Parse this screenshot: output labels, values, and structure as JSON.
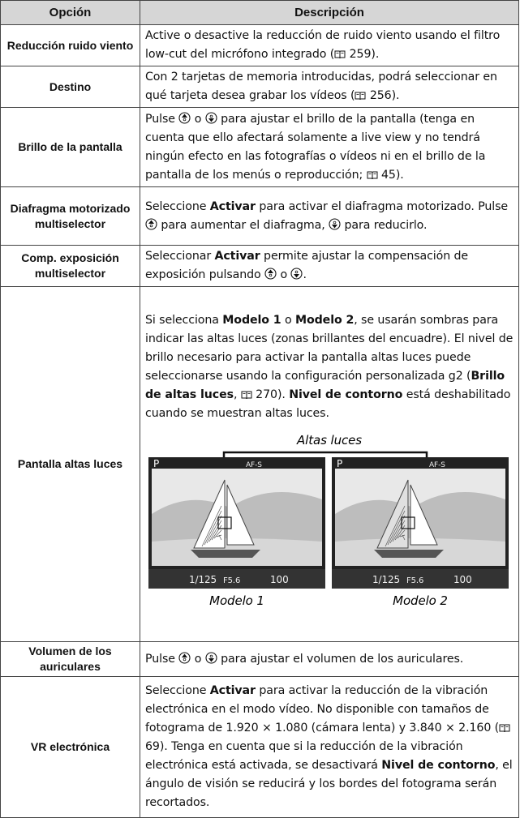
{
  "table": {
    "header": [
      "Opción",
      "Descripción"
    ],
    "rows": [
      {
        "option": "Reducción ruido viento",
        "description": [
          {
            "text": "Active o desactive la reducción de ruido viento usando el filtro low-cut del micrófono integrado ("
          },
          {
            "icon": "book"
          },
          {
            "text": " 259)."
          }
        ]
      },
      {
        "option": "Destino",
        "description": [
          {
            "text": "Con 2 tarjetas de memoria introducidas, podrá seleccionar en qué tarjeta desea grabar los vídeos ("
          },
          {
            "icon": "book"
          },
          {
            "text": " 256)."
          }
        ]
      },
      {
        "option": "Brillo de la pantalla",
        "description": [
          {
            "text": "Pulse "
          },
          {
            "icon": "up"
          },
          {
            "text": " o "
          },
          {
            "icon": "down"
          },
          {
            "text": " para ajustar el brillo de la pantalla (tenga en cuenta que ello afectará solamente a live view y no tendrá ningún efecto en las fotografías o vídeos ni en el brillo de la pantalla de los menús o reproducción; "
          },
          {
            "icon": "book"
          },
          {
            "text": " 45)."
          }
        ]
      },
      {
        "option": "Diafragma motorizado multiselector",
        "description": [
          {
            "text": "Seleccione "
          },
          {
            "text": "Activar",
            "bold": true
          },
          {
            "text": " para activar el diafragma motorizado. Pulse "
          },
          {
            "icon": "up"
          },
          {
            "text": " para aumentar el diafragma, "
          },
          {
            "icon": "down"
          },
          {
            "text": " para reducirlo."
          }
        ]
      },
      {
        "option": "Comp. exposición multiselector",
        "description": [
          {
            "text": "Seleccionar "
          },
          {
            "text": "Activar",
            "bold": true
          },
          {
            "text": " permite ajustar la compensación de exposición pulsando "
          },
          {
            "icon": "up"
          },
          {
            "text": " o "
          },
          {
            "icon": "down"
          },
          {
            "text": "."
          }
        ]
      },
      {
        "option": "Pantalla altas luces",
        "description": [
          {
            "text": "Si selecciona "
          },
          {
            "text": "Modelo 1",
            "bold": true
          },
          {
            "text": " o "
          },
          {
            "text": "Modelo 2",
            "bold": true
          },
          {
            "text": ", se usarán sombras para indicar las altas luces (zonas brillantes del encuadre). El nivel de brillo necesario para activar la pantalla altas luces puede seleccionarse usando la configuración personalizada g2 ("
          },
          {
            "text": "Brillo de altas luces",
            "bold": true
          },
          {
            "text": ", "
          },
          {
            "icon": "book"
          },
          {
            "text": " 270). "
          },
          {
            "text": "Nivel de contorno",
            "bold": true
          },
          {
            "text": " está deshabilitado cuando se muestran altas luces."
          }
        ],
        "figure": {
          "label": "Altas luces",
          "screen": {
            "mode": "P",
            "focus": "AF-S",
            "shutter": "1/125",
            "aperture": "F5.6",
            "iso": "100"
          },
          "panels": [
            {
              "caption": "Modelo 1"
            },
            {
              "caption": "Modelo 2"
            }
          ]
        }
      },
      {
        "option": "Volumen de los auriculares",
        "description": [
          {
            "text": "Pulse "
          },
          {
            "icon": "up"
          },
          {
            "text": " o "
          },
          {
            "icon": "down"
          },
          {
            "text": " para ajustar el volumen de los auriculares."
          }
        ]
      },
      {
        "option": "VR electrónica",
        "description": [
          {
            "text": "Seleccione "
          },
          {
            "text": "Activar",
            "bold": true
          },
          {
            "text": " para activar la reducción de la vibración electrónica en el modo vídeo. No disponible con tamaños de fotograma de 1.920 × 1.080 (cámara lenta) y 3.840 × 2.160 ("
          },
          {
            "icon": "book"
          },
          {
            "text": " 69). Tenga en cuenta que si la reducción de la vibración electrónica está activada, se desactivará "
          },
          {
            "text": "Nivel de contorno",
            "bold": true
          },
          {
            "text": ", el ángulo de visión se reducirá y los bordes del fotograma serán recortados."
          }
        ]
      }
    ]
  }
}
